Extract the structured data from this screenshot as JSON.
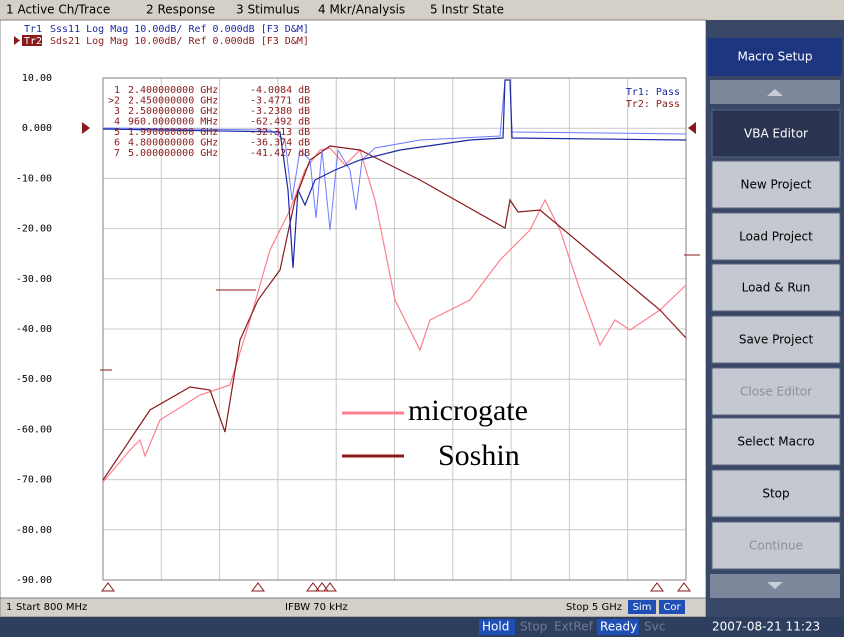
{
  "menu": [
    "1 Active Ch/Trace",
    "2 Response",
    "3 Stimulus",
    "4 Mkr/Analysis",
    "5 Instr State"
  ],
  "traces": [
    {
      "id": "Tr1",
      "text": "Sss11 Log Mag 10.00dB/ Ref 0.000dB [F3 D&M]"
    },
    {
      "id": "Tr2",
      "text": "Sds21 Log Mag 10.00dB/ Ref 0.000dB [F3 D&M]"
    }
  ],
  "y_labels": [
    "10.00",
    "0.000",
    "-10.00",
    "-20.00",
    "-30.00",
    "-40.00",
    "-50.00",
    "-60.00",
    "-70.00",
    "-80.00",
    "-90.00"
  ],
  "markers": [
    [
      "1",
      "2.400000000 GHz",
      "-4.0084 dB"
    ],
    [
      ">2",
      "2.450000000 GHz",
      "-3.4771 dB"
    ],
    [
      "3",
      "2.500000000 GHz",
      "-3.2380 dB"
    ],
    [
      "4",
      "960.0000000 MHz",
      "-62.492 dB"
    ],
    [
      "5",
      "1.990000000 GHz",
      "-32.313 dB"
    ],
    [
      "6",
      "4.800000000 GHz",
      "-36.374 dB"
    ],
    [
      "7",
      "5.000000000 GHz",
      "-41.427 dB"
    ]
  ],
  "pass": [
    "Tr1: Pass",
    "Tr2: Pass"
  ],
  "legend": [
    "microgate",
    "Soshin"
  ],
  "footer": {
    "channel": "1",
    "start": "Start 800 MHz",
    "ifbw": "IFBW 70 kHz",
    "stop": "Stop 5 GHz",
    "sim": "Sim",
    "cor": "Cor"
  },
  "status": [
    "Hold",
    "Stop",
    "ExtRef",
    "Ready",
    "Svc",
    "2007-08-21 11:23"
  ],
  "softkeys": {
    "title": "Macro Setup",
    "buttons": [
      "VBA Editor",
      "New Project",
      "Load Project",
      "Load & Run",
      "Save Project",
      "Close Editor",
      "Select Macro",
      "Stop",
      "Continue"
    ]
  }
}
